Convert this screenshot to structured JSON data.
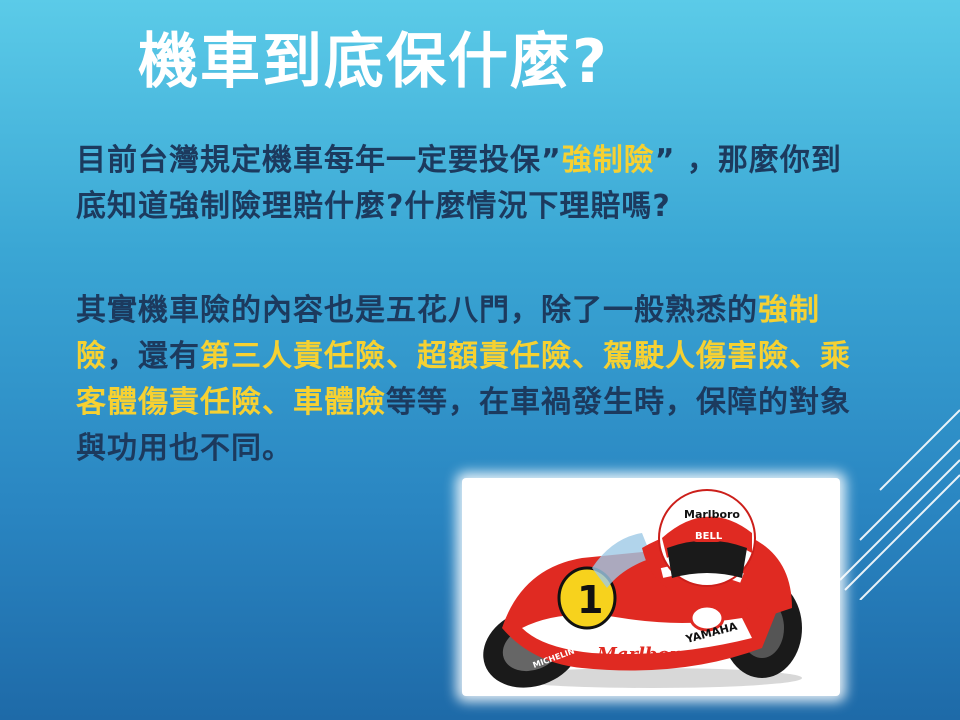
{
  "slide": {
    "title": "機車到底保什麼?",
    "paragraph1": {
      "before": "目前台灣規定機車每年一定要投保”",
      "highlight": "強制險",
      "after": "” ，那麼你到底知道強制險理賠什麼?什麼情況下理賠嗎?"
    },
    "paragraph2": {
      "text1": "其實機車險的內容也是五花八門，除了一般熟悉的",
      "hl1": "強制險",
      "text2": "，還有",
      "hl2": "第三人責任險、超額責任險、駕駛人傷害險、乘客體傷責任險、車體險",
      "text3": "等等，在車禍發生時，保障的對象與功用也不同。"
    },
    "image": {
      "helmet_brand": "Marlboro",
      "helmet_label": "BELL",
      "race_number": "1",
      "fairing_text": "YAMAHA",
      "fairing_brand": "Marlboro",
      "tire_brand": "MICHELIN"
    },
    "colors": {
      "title": "#ffffff",
      "body_text": "#1c3a5e",
      "highlight": "#f6d132",
      "background_top": "#5bcbe8",
      "background_bottom": "#1e6aa8"
    }
  }
}
